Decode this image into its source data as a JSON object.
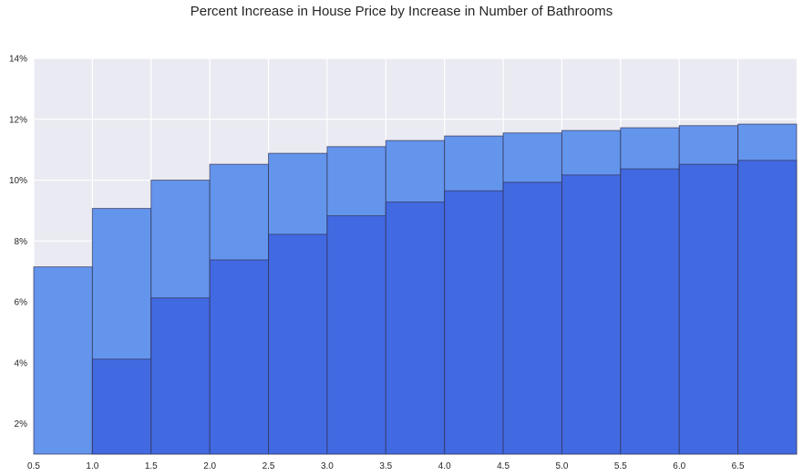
{
  "chart_data": {
    "type": "bar",
    "title": "Percent Increase in House Price by Increase in Number of Bathrooms",
    "xlabel": "",
    "ylabel": "",
    "xlim": [
      0.5,
      7.0
    ],
    "ylim": [
      1,
      14
    ],
    "x_ticks": [
      "0.5",
      "1.0",
      "1.5",
      "2.0",
      "2.5",
      "3.0",
      "3.5",
      "4.0",
      "4.5",
      "5.0",
      "5.5",
      "6.0",
      "6.5"
    ],
    "y_ticks": [
      "2%",
      "4%",
      "6%",
      "8%",
      "10%",
      "12%",
      "14%"
    ],
    "grid": true,
    "legend": "none",
    "bin_edges": [
      0.5,
      1.0,
      1.5,
      2.0,
      2.5,
      3.0,
      3.5,
      4.0,
      4.5,
      5.0,
      5.5,
      6.0,
      6.5,
      7.0
    ],
    "series": [
      {
        "values": [
          7.15,
          9.07,
          10.0,
          10.52,
          10.88,
          11.1,
          11.3,
          11.45,
          11.55,
          11.63,
          11.72,
          11.79,
          11.84
        ],
        "color": "#6495ed"
      },
      {
        "values": [
          null,
          4.12,
          6.13,
          7.38,
          8.22,
          8.83,
          9.28,
          9.65,
          9.93,
          10.17,
          10.37,
          10.52,
          10.65
        ],
        "color": "#4169e1"
      }
    ],
    "colors": {
      "background": "#eaeaf2",
      "grid": "#ffffff",
      "edge": "#333355"
    }
  }
}
